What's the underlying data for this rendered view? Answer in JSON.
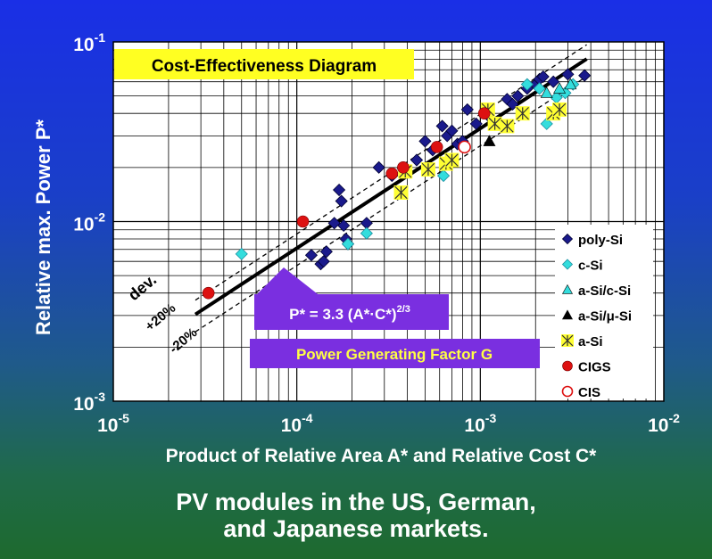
{
  "chart_data": {
    "type": "scatter",
    "title": "Cost-Effectiveness Diagram",
    "xlabel": "Product of Relative Area A* and Relative Cost C*",
    "ylabel": "Relative max. Power P*",
    "x_scale": "log",
    "y_scale": "log",
    "xlim": [
      1e-05,
      0.01
    ],
    "ylim": [
      0.001,
      0.1
    ],
    "grid": true,
    "legend_position": "bottom-right",
    "x_ticks": [
      {
        "base": "10",
        "exp": "-5"
      },
      {
        "base": "10",
        "exp": "-4"
      },
      {
        "base": "10",
        "exp": "-3"
      },
      {
        "base": "10",
        "exp": "-2"
      }
    ],
    "y_ticks": [
      {
        "base": "10",
        "exp": "-3"
      },
      {
        "base": "10",
        "exp": "-2"
      },
      {
        "base": "10",
        "exp": "-1"
      }
    ],
    "series": [
      {
        "name": "poly-Si",
        "marker": "diamond",
        "color": "#1a1a8c",
        "points": [
          [
            0.00012,
            0.0065
          ],
          [
            0.000135,
            0.0058
          ],
          [
            0.00014,
            0.006
          ],
          [
            0.000145,
            0.0068
          ],
          [
            0.00016,
            0.0098
          ],
          [
            0.00017,
            0.015
          ],
          [
            0.000175,
            0.013
          ],
          [
            0.00018,
            0.0095
          ],
          [
            0.000185,
            0.008
          ],
          [
            0.00019,
            0.0075
          ],
          [
            0.00024,
            0.0098
          ],
          [
            0.00028,
            0.02
          ],
          [
            0.00033,
            0.018
          ],
          [
            0.00045,
            0.022
          ],
          [
            0.0005,
            0.028
          ],
          [
            0.00055,
            0.025
          ],
          [
            0.00062,
            0.034
          ],
          [
            0.00066,
            0.03
          ],
          [
            0.0007,
            0.032
          ],
          [
            0.00075,
            0.027
          ],
          [
            0.0008,
            0.028
          ],
          [
            0.00085,
            0.042
          ],
          [
            0.00095,
            0.035
          ],
          [
            0.0011,
            0.039
          ],
          [
            0.00125,
            0.036
          ],
          [
            0.0014,
            0.048
          ],
          [
            0.0015,
            0.045
          ],
          [
            0.0016,
            0.05
          ],
          [
            0.0018,
            0.055
          ],
          [
            0.002,
            0.058
          ],
          [
            0.0021,
            0.062
          ],
          [
            0.0022,
            0.064
          ],
          [
            0.0025,
            0.06
          ],
          [
            0.003,
            0.066
          ],
          [
            0.0037,
            0.065
          ]
        ]
      },
      {
        "name": "c-Si",
        "marker": "diamond",
        "color": "#33dddd",
        "points": [
          [
            5e-05,
            0.0066
          ],
          [
            0.00019,
            0.0075
          ],
          [
            0.00024,
            0.0086
          ],
          [
            0.00063,
            0.018
          ],
          [
            0.0018,
            0.058
          ],
          [
            0.0021,
            0.055
          ],
          [
            0.0023,
            0.035
          ],
          [
            0.0026,
            0.049
          ],
          [
            0.0029,
            0.052
          ],
          [
            0.0032,
            0.058
          ]
        ]
      },
      {
        "name": "a-Si/c-Si",
        "marker": "triangle",
        "color": "#33dddd",
        "points": [
          [
            0.0023,
            0.052
          ],
          [
            0.0027,
            0.055
          ],
          [
            0.0031,
            0.058
          ]
        ]
      },
      {
        "name": "a-Si/μ-Si",
        "marker": "triangle",
        "color": "#000000",
        "points": [
          [
            0.00112,
            0.028
          ]
        ]
      },
      {
        "name": "a-Si",
        "marker": "asterisk-square",
        "color": "#ffff33",
        "points": [
          [
            0.00037,
            0.0145
          ],
          [
            0.00039,
            0.019
          ],
          [
            0.00052,
            0.0195
          ],
          [
            0.00065,
            0.021
          ],
          [
            0.0007,
            0.022
          ],
          [
            0.0011,
            0.042
          ],
          [
            0.0012,
            0.035
          ],
          [
            0.0014,
            0.034
          ],
          [
            0.0017,
            0.04
          ],
          [
            0.0025,
            0.04
          ],
          [
            0.0027,
            0.042
          ]
        ]
      },
      {
        "name": "CIGS",
        "marker": "circle",
        "color": "#dd1111",
        "points": [
          [
            3.3e-05,
            0.004
          ],
          [
            0.000108,
            0.01
          ],
          [
            0.00033,
            0.0185
          ],
          [
            0.00038,
            0.02
          ],
          [
            0.00058,
            0.026
          ],
          [
            0.00105,
            0.04
          ]
        ]
      },
      {
        "name": "CIS",
        "marker": "circle-open",
        "color": "#dd1111",
        "points": [
          [
            0.00082,
            0.026
          ]
        ]
      }
    ],
    "fit_line": {
      "label": "P* = 3.3 (A*·C*)",
      "exp": "2/3",
      "x_range": [
        2.8e-05,
        0.0038
      ]
    },
    "deviation_bands": {
      "label": "dev.",
      "upper": "+20%",
      "lower": "-20%"
    },
    "annotation": "Power Generating Factor G"
  },
  "caption": {
    "line1": "PV modules in the US, German,",
    "line2": "and Japanese markets."
  }
}
